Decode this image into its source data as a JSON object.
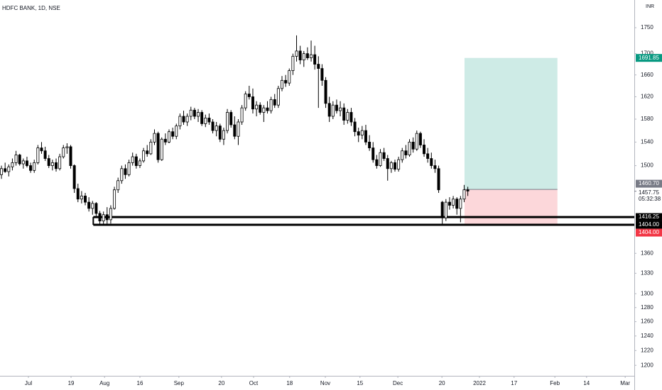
{
  "chart_data": {
    "type": "candlestick",
    "title": "HDFC BANK, 1D, NSE",
    "currency": "INR",
    "log_scale": true,
    "grid": false,
    "up_color": "#ffffff",
    "down_color": "#000000",
    "ylim": [
      1186,
      1805
    ],
    "yticks": [
      1200,
      1220,
      1240,
      1260,
      1280,
      1300,
      1330,
      1360,
      1500,
      1540,
      1580,
      1620,
      1660,
      1700,
      1750
    ],
    "xlim": [
      -0.4,
      173.7
    ],
    "xticks": [
      {
        "value": 7.4,
        "label": "Jul"
      },
      {
        "value": 19.1,
        "label": "19"
      },
      {
        "value": 28.3,
        "label": "Aug"
      },
      {
        "value": 38.0,
        "label": "16"
      },
      {
        "value": 48.7,
        "label": "Sep"
      },
      {
        "value": 60.4,
        "label": "20"
      },
      {
        "value": 69.2,
        "label": "Oct"
      },
      {
        "value": 79.1,
        "label": "18"
      },
      {
        "value": 88.9,
        "label": "Nov"
      },
      {
        "value": 98.4,
        "label": "15"
      },
      {
        "value": 108.8,
        "label": "Dec"
      },
      {
        "value": 120.9,
        "label": "20"
      },
      {
        "value": 131.2,
        "label": "2022"
      },
      {
        "value": 140.7,
        "label": "17"
      },
      {
        "value": 151.9,
        "label": "Feb"
      },
      {
        "value": 160.6,
        "label": "14"
      },
      {
        "value": 171.2,
        "label": "Mar"
      }
    ],
    "ohlc": [
      [
        1485,
        1500,
        1478,
        1495
      ],
      [
        1495,
        1505,
        1488,
        1490
      ],
      [
        1490,
        1502,
        1482,
        1498
      ],
      [
        1498,
        1512,
        1492,
        1505
      ],
      [
        1505,
        1525,
        1500,
        1518
      ],
      [
        1518,
        1520,
        1500,
        1503
      ],
      [
        1503,
        1512,
        1495,
        1508
      ],
      [
        1508,
        1515,
        1497,
        1500
      ],
      [
        1500,
        1505,
        1488,
        1492
      ],
      [
        1492,
        1510,
        1488,
        1505
      ],
      [
        1505,
        1535,
        1502,
        1530
      ],
      [
        1530,
        1540,
        1520,
        1525
      ],
      [
        1525,
        1532,
        1508,
        1512
      ],
      [
        1512,
        1518,
        1496,
        1500
      ],
      [
        1500,
        1510,
        1492,
        1505
      ],
      [
        1505,
        1512,
        1490,
        1495
      ],
      [
        1495,
        1520,
        1492,
        1515
      ],
      [
        1515,
        1535,
        1512,
        1530
      ],
      [
        1530,
        1538,
        1520,
        1532
      ],
      [
        1532,
        1535,
        1495,
        1500
      ],
      [
        1500,
        1502,
        1455,
        1462
      ],
      [
        1462,
        1470,
        1440,
        1445
      ],
      [
        1445,
        1458,
        1438,
        1450
      ],
      [
        1450,
        1455,
        1435,
        1440
      ],
      [
        1440,
        1448,
        1425,
        1430
      ],
      [
        1430,
        1442,
        1420,
        1438
      ],
      [
        1438,
        1440,
        1418,
        1422
      ],
      [
        1422,
        1426,
        1404,
        1410
      ],
      [
        1410,
        1425,
        1405,
        1420
      ],
      [
        1420,
        1432,
        1404,
        1412
      ],
      [
        1412,
        1435,
        1406,
        1430
      ],
      [
        1430,
        1465,
        1428,
        1460
      ],
      [
        1460,
        1480,
        1455,
        1475
      ],
      [
        1475,
        1500,
        1470,
        1495
      ],
      [
        1495,
        1502,
        1478,
        1485
      ],
      [
        1485,
        1510,
        1482,
        1505
      ],
      [
        1505,
        1522,
        1500,
        1515
      ],
      [
        1515,
        1520,
        1495,
        1500
      ],
      [
        1500,
        1512,
        1496,
        1508
      ],
      [
        1508,
        1530,
        1505,
        1525
      ],
      [
        1525,
        1535,
        1515,
        1520
      ],
      [
        1520,
        1545,
        1518,
        1540
      ],
      [
        1540,
        1562,
        1535,
        1555
      ],
      [
        1555,
        1558,
        1505,
        1510
      ],
      [
        1510,
        1548,
        1508,
        1545
      ],
      [
        1545,
        1555,
        1535,
        1540
      ],
      [
        1540,
        1562,
        1538,
        1558
      ],
      [
        1558,
        1565,
        1545,
        1550
      ],
      [
        1550,
        1572,
        1545,
        1568
      ],
      [
        1568,
        1590,
        1562,
        1585
      ],
      [
        1585,
        1595,
        1570,
        1575
      ],
      [
        1575,
        1590,
        1568,
        1585
      ],
      [
        1585,
        1602,
        1578,
        1596
      ],
      [
        1596,
        1600,
        1580,
        1585
      ],
      [
        1585,
        1598,
        1575,
        1592
      ],
      [
        1592,
        1596,
        1568,
        1572
      ],
      [
        1572,
        1588,
        1566,
        1582
      ],
      [
        1582,
        1590,
        1570,
        1575
      ],
      [
        1575,
        1580,
        1555,
        1560
      ],
      [
        1560,
        1575,
        1550,
        1568
      ],
      [
        1568,
        1572,
        1540,
        1545
      ],
      [
        1545,
        1565,
        1535,
        1560
      ],
      [
        1560,
        1598,
        1555,
        1592
      ],
      [
        1592,
        1596,
        1565,
        1570
      ],
      [
        1570,
        1585,
        1545,
        1550
      ],
      [
        1550,
        1580,
        1535,
        1575
      ],
      [
        1575,
        1605,
        1570,
        1600
      ],
      [
        1600,
        1630,
        1595,
        1625
      ],
      [
        1625,
        1640,
        1615,
        1620
      ],
      [
        1620,
        1635,
        1590,
        1598
      ],
      [
        1598,
        1612,
        1585,
        1605
      ],
      [
        1605,
        1610,
        1588,
        1592
      ],
      [
        1592,
        1605,
        1575,
        1600
      ],
      [
        1600,
        1612,
        1590,
        1595
      ],
      [
        1595,
        1620,
        1590,
        1615
      ],
      [
        1615,
        1625,
        1600,
        1605
      ],
      [
        1605,
        1640,
        1600,
        1635
      ],
      [
        1635,
        1658,
        1630,
        1650
      ],
      [
        1650,
        1660,
        1638,
        1645
      ],
      [
        1645,
        1672,
        1640,
        1668
      ],
      [
        1668,
        1700,
        1660,
        1695
      ],
      [
        1695,
        1735,
        1685,
        1705
      ],
      [
        1705,
        1715,
        1680,
        1688
      ],
      [
        1688,
        1705,
        1675,
        1700
      ],
      [
        1700,
        1712,
        1688,
        1692
      ],
      [
        1692,
        1725,
        1685,
        1698
      ],
      [
        1698,
        1715,
        1670,
        1680
      ],
      [
        1680,
        1695,
        1600,
        1672
      ],
      [
        1672,
        1680,
        1640,
        1650
      ],
      [
        1650,
        1656,
        1600,
        1608
      ],
      [
        1608,
        1620,
        1575,
        1585
      ],
      [
        1585,
        1612,
        1580,
        1605
      ],
      [
        1605,
        1615,
        1590,
        1595
      ],
      [
        1595,
        1612,
        1585,
        1600
      ],
      [
        1600,
        1608,
        1570,
        1578
      ],
      [
        1578,
        1598,
        1572,
        1592
      ],
      [
        1592,
        1600,
        1568,
        1575
      ],
      [
        1575,
        1582,
        1550,
        1558
      ],
      [
        1558,
        1565,
        1540,
        1552
      ],
      [
        1552,
        1568,
        1545,
        1560
      ],
      [
        1560,
        1570,
        1535,
        1540
      ],
      [
        1540,
        1552,
        1525,
        1530
      ],
      [
        1530,
        1540,
        1505,
        1510
      ],
      [
        1510,
        1518,
        1495,
        1500
      ],
      [
        1500,
        1528,
        1498,
        1522
      ],
      [
        1522,
        1530,
        1508,
        1512
      ],
      [
        1512,
        1518,
        1475,
        1495
      ],
      [
        1495,
        1508,
        1488,
        1505
      ],
      [
        1505,
        1510,
        1490,
        1494
      ],
      [
        1494,
        1515,
        1490,
        1510
      ],
      [
        1510,
        1530,
        1505,
        1525
      ],
      [
        1525,
        1535,
        1512,
        1518
      ],
      [
        1518,
        1545,
        1515,
        1540
      ],
      [
        1540,
        1548,
        1522,
        1528
      ],
      [
        1528,
        1560,
        1525,
        1555
      ],
      [
        1555,
        1558,
        1530,
        1535
      ],
      [
        1535,
        1545,
        1515,
        1520
      ],
      [
        1520,
        1530,
        1505,
        1512
      ],
      [
        1512,
        1522,
        1495,
        1500
      ],
      [
        1500,
        1510,
        1488,
        1495
      ],
      [
        1495,
        1500,
        1455,
        1460
      ],
      [
        1440,
        1442,
        1405,
        1415
      ],
      [
        1415,
        1445,
        1410,
        1440
      ],
      [
        1440,
        1448,
        1428,
        1435
      ],
      [
        1435,
        1450,
        1430,
        1445
      ],
      [
        1445,
        1448,
        1420,
        1430
      ],
      [
        1430,
        1450,
        1408,
        1445
      ],
      [
        1445,
        1468,
        1440,
        1460
      ],
      [
        1460,
        1465,
        1450,
        1458
      ]
    ],
    "levels": [
      {
        "value": 1416.25,
        "label": "1416.25",
        "start": 25.2
      },
      {
        "value": 1404,
        "label": "1404.00",
        "start": 25.2
      }
    ],
    "position": {
      "start": 127.1,
      "end": 152.6,
      "target": {
        "value": 1691.85,
        "label": "1691.85",
        "color": "#089981"
      },
      "entry": {
        "value": 1460.7,
        "label": "1460.70",
        "color": "#787b86"
      },
      "stop": {
        "value": 1404,
        "label": "1404.00",
        "color": "#f23645"
      }
    },
    "last_price": {
      "value": 1457.75,
      "label": "1457.75",
      "countdown": "05:32:38"
    }
  }
}
